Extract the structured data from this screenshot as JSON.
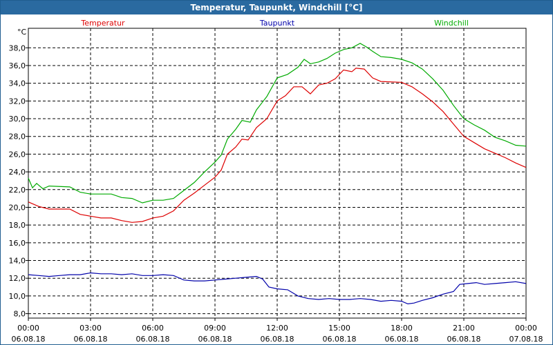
{
  "window": {
    "title": "Temperatur, Taupunkt, Windchill [°C]"
  },
  "chart_data": {
    "type": "line",
    "ylabel": "°C",
    "ylim": [
      7.5,
      40.2
    ],
    "y_ticks": [
      "8,0",
      "10,0",
      "12,0",
      "14,0",
      "16,0",
      "18,0",
      "20,0",
      "22,0",
      "24,0",
      "26,0",
      "28,0",
      "30,0",
      "32,0",
      "34,0",
      "36,0",
      "38,0"
    ],
    "xlim": [
      0,
      24
    ],
    "x_ticks": [
      {
        "time": "00:00",
        "date": "06.08.18"
      },
      {
        "time": "03:00",
        "date": "06.08.18"
      },
      {
        "time": "06:00",
        "date": "06.08.18"
      },
      {
        "time": "09:00",
        "date": "06.08.18"
      },
      {
        "time": "12:00",
        "date": "06.08.18"
      },
      {
        "time": "15:00",
        "date": "06.08.18"
      },
      {
        "time": "18:00",
        "date": "06.08.18"
      },
      {
        "time": "21:00",
        "date": "06.08.18"
      },
      {
        "time": "00:00",
        "date": "07.08.18"
      }
    ],
    "grid": true,
    "legend_position": "top",
    "series": [
      {
        "name": "Temperatur",
        "color": "#dd0000",
        "points": [
          [
            0,
            20.6
          ],
          [
            0.5,
            20.1
          ],
          [
            1,
            19.8
          ],
          [
            2,
            19.8
          ],
          [
            2.5,
            19.2
          ],
          [
            3,
            19.0
          ],
          [
            3.5,
            18.8
          ],
          [
            4,
            18.8
          ],
          [
            4.5,
            18.5
          ],
          [
            5,
            18.3
          ],
          [
            5.5,
            18.4
          ],
          [
            6,
            18.8
          ],
          [
            6.5,
            19.0
          ],
          [
            7,
            19.6
          ],
          [
            7.5,
            20.8
          ],
          [
            8,
            21.6
          ],
          [
            8.5,
            22.5
          ],
          [
            9,
            23.4
          ],
          [
            9.3,
            24.2
          ],
          [
            9.6,
            26.0
          ],
          [
            10,
            26.8
          ],
          [
            10.3,
            27.7
          ],
          [
            10.6,
            27.6
          ],
          [
            11,
            29.0
          ],
          [
            11.5,
            30.0
          ],
          [
            12,
            32.0
          ],
          [
            12.4,
            32.6
          ],
          [
            12.8,
            33.6
          ],
          [
            13.2,
            33.6
          ],
          [
            13.6,
            32.8
          ],
          [
            14,
            33.8
          ],
          [
            14.4,
            34.0
          ],
          [
            14.8,
            34.5
          ],
          [
            15.2,
            35.5
          ],
          [
            15.6,
            35.3
          ],
          [
            15.8,
            35.7
          ],
          [
            16.2,
            35.6
          ],
          [
            16.6,
            34.6
          ],
          [
            17,
            34.2
          ],
          [
            18,
            34.1
          ],
          [
            18.5,
            33.6
          ],
          [
            19,
            32.8
          ],
          [
            19.5,
            31.9
          ],
          [
            20,
            30.8
          ],
          [
            20.5,
            29.4
          ],
          [
            21,
            28.0
          ],
          [
            21.5,
            27.3
          ],
          [
            22,
            26.6
          ],
          [
            22.5,
            26.1
          ],
          [
            23,
            25.6
          ],
          [
            23.5,
            25.0
          ],
          [
            24,
            24.5
          ]
        ]
      },
      {
        "name": "Taupunkt",
        "color": "#0000aa",
        "points": [
          [
            0,
            12.4
          ],
          [
            0.5,
            12.3
          ],
          [
            1,
            12.2
          ],
          [
            1.5,
            12.3
          ],
          [
            2,
            12.4
          ],
          [
            2.5,
            12.4
          ],
          [
            3,
            12.6
          ],
          [
            3.5,
            12.5
          ],
          [
            4,
            12.5
          ],
          [
            4.5,
            12.4
          ],
          [
            5,
            12.5
          ],
          [
            5.5,
            12.3
          ],
          [
            6,
            12.3
          ],
          [
            6.5,
            12.4
          ],
          [
            7,
            12.3
          ],
          [
            7.5,
            11.8
          ],
          [
            8,
            11.7
          ],
          [
            8.5,
            11.7
          ],
          [
            9,
            11.8
          ],
          [
            9.5,
            11.9
          ],
          [
            10,
            12.0
          ],
          [
            10.5,
            12.1
          ],
          [
            11,
            12.2
          ],
          [
            11.3,
            11.9
          ],
          [
            11.6,
            11.0
          ],
          [
            12,
            10.8
          ],
          [
            12.5,
            10.7
          ],
          [
            13,
            10.0
          ],
          [
            13.5,
            9.7
          ],
          [
            14,
            9.6
          ],
          [
            14.5,
            9.7
          ],
          [
            15,
            9.6
          ],
          [
            15.5,
            9.6
          ],
          [
            16,
            9.7
          ],
          [
            16.5,
            9.6
          ],
          [
            17,
            9.4
          ],
          [
            17.5,
            9.5
          ],
          [
            18,
            9.4
          ],
          [
            18.3,
            9.1
          ],
          [
            18.6,
            9.2
          ],
          [
            19,
            9.5
          ],
          [
            19.5,
            9.8
          ],
          [
            20,
            10.2
          ],
          [
            20.5,
            10.5
          ],
          [
            20.8,
            11.3
          ],
          [
            21.2,
            11.4
          ],
          [
            21.6,
            11.5
          ],
          [
            22,
            11.3
          ],
          [
            22.5,
            11.4
          ],
          [
            23,
            11.5
          ],
          [
            23.5,
            11.6
          ],
          [
            24,
            11.4
          ]
        ]
      },
      {
        "name": "Windchill",
        "color": "#00aa00",
        "points": [
          [
            0,
            23.3
          ],
          [
            0.2,
            22.2
          ],
          [
            0.4,
            22.7
          ],
          [
            0.7,
            22.1
          ],
          [
            1,
            22.4
          ],
          [
            2,
            22.3
          ],
          [
            2.5,
            21.7
          ],
          [
            3,
            21.5
          ],
          [
            3.5,
            21.5
          ],
          [
            4,
            21.5
          ],
          [
            4.5,
            21.1
          ],
          [
            5,
            21.0
          ],
          [
            5.5,
            20.5
          ],
          [
            6,
            20.8
          ],
          [
            6.5,
            20.8
          ],
          [
            7,
            21.0
          ],
          [
            7.5,
            21.9
          ],
          [
            8,
            22.8
          ],
          [
            8.5,
            24.0
          ],
          [
            9,
            25.1
          ],
          [
            9.3,
            25.9
          ],
          [
            9.6,
            27.7
          ],
          [
            10,
            28.8
          ],
          [
            10.3,
            29.8
          ],
          [
            10.7,
            29.6
          ],
          [
            11,
            31.0
          ],
          [
            11.5,
            32.5
          ],
          [
            12,
            34.6
          ],
          [
            12.5,
            35.0
          ],
          [
            13,
            35.8
          ],
          [
            13.3,
            36.7
          ],
          [
            13.6,
            36.2
          ],
          [
            14,
            36.4
          ],
          [
            14.4,
            36.8
          ],
          [
            14.8,
            37.4
          ],
          [
            15.2,
            37.8
          ],
          [
            15.6,
            38.0
          ],
          [
            16,
            38.5
          ],
          [
            16.3,
            38.1
          ],
          [
            16.6,
            37.6
          ],
          [
            17,
            37.0
          ],
          [
            17.5,
            36.9
          ],
          [
            18,
            36.7
          ],
          [
            18.5,
            36.3
          ],
          [
            19,
            35.6
          ],
          [
            19.5,
            34.5
          ],
          [
            20,
            33.2
          ],
          [
            20.5,
            31.5
          ],
          [
            21,
            30.0
          ],
          [
            21.5,
            29.3
          ],
          [
            22,
            28.7
          ],
          [
            22.5,
            27.9
          ],
          [
            23,
            27.5
          ],
          [
            23.5,
            27.0
          ],
          [
            24,
            26.9
          ]
        ]
      }
    ]
  }
}
